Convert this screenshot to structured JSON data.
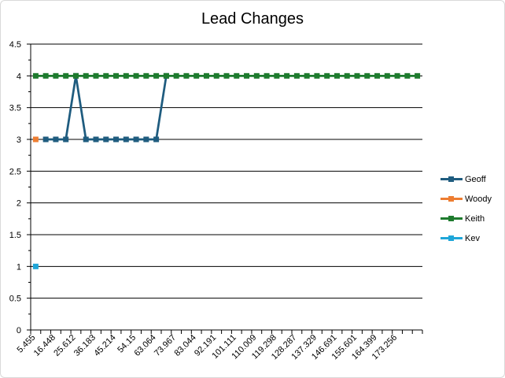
{
  "chart_data": {
    "type": "line",
    "title": "Lead Changes",
    "xlabel": "",
    "ylabel": "",
    "ylim": [
      0,
      4.5
    ],
    "ytick_labels": [
      "0",
      "0.5",
      "1",
      "1.5",
      "2",
      "2.5",
      "3",
      "3.5",
      "4",
      "4.5"
    ],
    "x_tick_labels": [
      "5.455",
      "16.448",
      "25.612",
      "36.183",
      "45.214",
      "54.15",
      "63.064",
      "73.967",
      "83.044",
      "92.191",
      "101.111",
      "110.009",
      "119.298",
      "128.287",
      "137.329",
      "146.691",
      "155.601",
      "164.399",
      "173.256"
    ],
    "n_points": 39,
    "grid": true,
    "legend_position": "right",
    "series": [
      {
        "name": "Geoff",
        "color": "#1f5c7f",
        "values": [
          null,
          3,
          3,
          3,
          4,
          3,
          3,
          3,
          3,
          3,
          3,
          3,
          3,
          4,
          null,
          null,
          null,
          null,
          null,
          null,
          null,
          null,
          null,
          null,
          null,
          null,
          null,
          null,
          null,
          null,
          null,
          null,
          null,
          null,
          null,
          null,
          null,
          null,
          null
        ]
      },
      {
        "name": "Woody",
        "color": "#ed7d31",
        "values": [
          3,
          null,
          null,
          null,
          null,
          null,
          null,
          null,
          null,
          null,
          null,
          null,
          null,
          null,
          null,
          null,
          null,
          null,
          null,
          null,
          null,
          null,
          null,
          null,
          null,
          null,
          null,
          null,
          null,
          null,
          null,
          null,
          null,
          null,
          null,
          null,
          null,
          null,
          null
        ]
      },
      {
        "name": "Keith",
        "color": "#1e7b2e",
        "values": [
          4,
          4,
          4,
          4,
          4,
          4,
          4,
          4,
          4,
          4,
          4,
          4,
          4,
          4,
          4,
          4,
          4,
          4,
          4,
          4,
          4,
          4,
          4,
          4,
          4,
          4,
          4,
          4,
          4,
          4,
          4,
          4,
          4,
          4,
          4,
          4,
          4,
          4,
          4
        ]
      },
      {
        "name": "Kev",
        "color": "#1fa6d8",
        "values": [
          1,
          null,
          null,
          null,
          null,
          null,
          null,
          null,
          null,
          null,
          null,
          null,
          null,
          null,
          null,
          null,
          null,
          null,
          null,
          null,
          null,
          null,
          null,
          null,
          null,
          null,
          null,
          null,
          null,
          null,
          null,
          null,
          null,
          null,
          null,
          null,
          null,
          null,
          null
        ]
      }
    ]
  }
}
